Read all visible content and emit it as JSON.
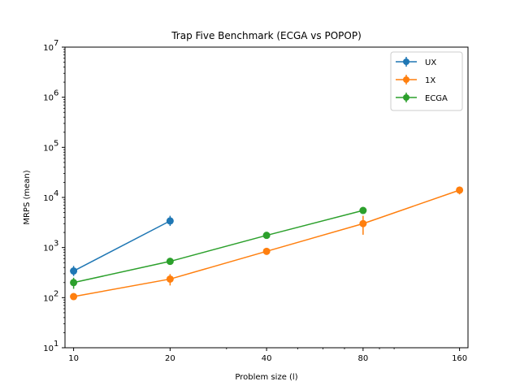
{
  "chart_data": {
    "type": "line",
    "title": "Trap Five Benchmark (ECGA vs POPOP)",
    "xlabel": "Problem size (l)",
    "ylabel": "MRPS (mean)",
    "x_scale": "log2",
    "y_scale": "log10",
    "x_ticks": [
      10,
      20,
      40,
      80,
      160
    ],
    "x_tick_labels": [
      "10",
      "20",
      "40",
      "80",
      "160"
    ],
    "y_ticks": [
      1,
      2,
      3,
      4,
      5,
      6,
      7
    ],
    "y_tick_labels": [
      "10",
      "10",
      "10",
      "10",
      "10",
      "10",
      "10"
    ],
    "y_tick_exponents": [
      "1",
      "2",
      "3",
      "4",
      "5",
      "6",
      "7"
    ],
    "xlim": [
      9.4,
      170
    ],
    "ylim": [
      10,
      10000000
    ],
    "grid": false,
    "legend_position": "top-right",
    "series": [
      {
        "name": "UX",
        "color": "#1f77b4",
        "x": [
          10,
          20
        ],
        "y": [
          340,
          3400
        ],
        "err_low": [
          270,
          2700
        ],
        "err_high": [
          430,
          4300
        ]
      },
      {
        "name": "1X",
        "color": "#ff7f0e",
        "x": [
          10,
          20,
          40,
          80,
          160
        ],
        "y": [
          105,
          235,
          840,
          3000,
          14000
        ],
        "err_low": [
          90,
          175,
          740,
          1800,
          11500
        ],
        "err_high": [
          120,
          295,
          950,
          4300,
          16500
        ]
      },
      {
        "name": "ECGA",
        "color": "#2ca02c",
        "x": [
          10,
          20,
          40,
          80
        ],
        "y": [
          200,
          530,
          1750,
          5500
        ],
        "err_low": [
          150,
          460,
          1600,
          5000
        ],
        "err_high": [
          250,
          620,
          1900,
          6000
        ]
      }
    ]
  }
}
